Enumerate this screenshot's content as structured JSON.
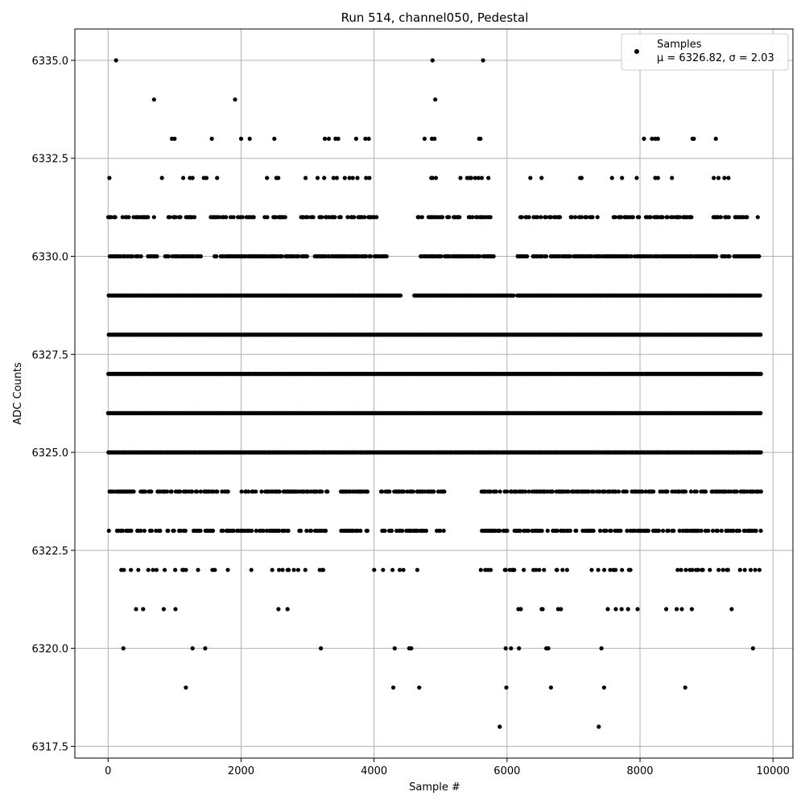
{
  "chart_data": {
    "type": "scatter",
    "title": "Run 514, channel050, Pedestal",
    "xlabel": "Sample #",
    "ylabel": "ADC Counts",
    "xlim": [
      -500,
      10300
    ],
    "ylim": [
      6317.2,
      6335.8
    ],
    "xticks": [
      0,
      2000,
      4000,
      6000,
      8000,
      10000
    ],
    "xtick_labels": [
      "0",
      "2000",
      "4000",
      "6000",
      "8000",
      "10000"
    ],
    "yticks": [
      6317.5,
      6320.0,
      6322.5,
      6325.0,
      6327.5,
      6330.0,
      6332.5,
      6335.0
    ],
    "ytick_labels": [
      "6317.5",
      "6320.0",
      "6322.5",
      "6325.0",
      "6327.5",
      "6330.0",
      "6332.5",
      "6335.0"
    ],
    "grid": true,
    "legend_position": "top-right",
    "marker_color": "#000000",
    "series": [
      {
        "name": "Samples",
        "stats_label": "μ = 6326.82, σ = 2.03",
        "sample_count": 9830,
        "adc_range": [
          6318,
          6335
        ],
        "points": [
          [
            120,
            6335
          ],
          [
            4880,
            6335
          ],
          [
            5640,
            6335
          ],
          [
            690,
            6334
          ],
          [
            1910,
            6334
          ],
          [
            4920,
            6334
          ],
          [
            960,
            6333
          ],
          [
            1000,
            6333
          ],
          [
            1560,
            6333
          ],
          [
            2000,
            6333
          ],
          [
            2130,
            6333
          ],
          [
            2500,
            6333
          ],
          [
            3260,
            6333
          ],
          [
            3320,
            6333
          ],
          [
            3420,
            6333
          ],
          [
            3460,
            6333
          ],
          [
            3730,
            6333
          ],
          [
            3870,
            6333
          ],
          [
            3920,
            6333
          ],
          [
            4760,
            6333
          ],
          [
            4870,
            6333
          ],
          [
            4910,
            6333
          ],
          [
            5580,
            6333
          ],
          [
            5600,
            6333
          ],
          [
            8060,
            6333
          ],
          [
            8180,
            6333
          ],
          [
            8230,
            6333
          ],
          [
            8270,
            6333
          ],
          [
            8790,
            6333
          ],
          [
            8810,
            6333
          ],
          [
            9140,
            6333
          ],
          [
            20,
            6332
          ],
          [
            810,
            6332
          ],
          [
            1130,
            6332
          ],
          [
            1230,
            6332
          ],
          [
            1270,
            6332
          ],
          [
            1440,
            6332
          ],
          [
            1480,
            6332
          ],
          [
            1640,
            6332
          ],
          [
            2390,
            6332
          ],
          [
            2530,
            6332
          ],
          [
            2560,
            6332
          ],
          [
            2970,
            6332
          ],
          [
            3150,
            6332
          ],
          [
            3250,
            6332
          ],
          [
            3390,
            6332
          ],
          [
            3440,
            6332
          ],
          [
            3560,
            6332
          ],
          [
            3630,
            6332
          ],
          [
            3680,
            6332
          ],
          [
            3750,
            6332
          ],
          [
            3880,
            6332
          ],
          [
            3930,
            6332
          ],
          [
            4860,
            6332
          ],
          [
            4880,
            6332
          ],
          [
            4930,
            6332
          ],
          [
            5300,
            6332
          ],
          [
            5400,
            6332
          ],
          [
            5440,
            6332
          ],
          [
            5460,
            6332
          ],
          [
            5520,
            6332
          ],
          [
            5570,
            6332
          ],
          [
            5620,
            6332
          ],
          [
            5720,
            6332
          ],
          [
            6350,
            6332
          ],
          [
            6520,
            6332
          ],
          [
            7100,
            6332
          ],
          [
            7120,
            6332
          ],
          [
            7580,
            6332
          ],
          [
            7730,
            6332
          ],
          [
            7950,
            6332
          ],
          [
            8230,
            6332
          ],
          [
            8270,
            6332
          ],
          [
            8480,
            6332
          ],
          [
            9110,
            6332
          ],
          [
            9180,
            6332
          ],
          [
            9270,
            6332
          ],
          [
            9330,
            6332
          ],
          [
            230,
            6320
          ],
          [
            1270,
            6320
          ],
          [
            1460,
            6320
          ],
          [
            3200,
            6320
          ],
          [
            4310,
            6320
          ],
          [
            4530,
            6320
          ],
          [
            4560,
            6320
          ],
          [
            5980,
            6320
          ],
          [
            6060,
            6320
          ],
          [
            6180,
            6320
          ],
          [
            6590,
            6320
          ],
          [
            6620,
            6320
          ],
          [
            7420,
            6320
          ],
          [
            9700,
            6320
          ],
          [
            1170,
            6319
          ],
          [
            4290,
            6319
          ],
          [
            4680,
            6319
          ],
          [
            5990,
            6319
          ],
          [
            6660,
            6319
          ],
          [
            7460,
            6319
          ],
          [
            8680,
            6319
          ],
          [
            5890,
            6318
          ],
          [
            7380,
            6318
          ]
        ],
        "row_bands": [
          {
            "adc": 6331,
            "ranges": [
              [
                0,
                700
              ],
              [
                900,
                1300
              ],
              [
                1500,
                2200
              ],
              [
                2300,
                2700
              ],
              [
                2900,
                3500
              ],
              [
                3600,
                4100
              ],
              [
                4650,
                5750
              ],
              [
                6200,
                6800
              ],
              [
                6900,
                7400
              ],
              [
                7600,
                8900
              ],
              [
                9100,
                9800
              ]
            ],
            "density": 0.55
          },
          {
            "adc": 6330,
            "ranges": [
              [
                0,
                500
              ],
              [
                600,
                1400
              ],
              [
                1600,
                3000
              ],
              [
                3100,
                4200
              ],
              [
                4700,
                5800
              ],
              [
                6150,
                9800
              ]
            ],
            "density": 0.75
          },
          {
            "adc": 6329,
            "ranges": [
              [
                0,
                4400
              ],
              [
                4600,
                6100
              ],
              [
                6150,
                9810
              ]
            ],
            "density": 1.0
          },
          {
            "adc": 6328,
            "ranges": [
              [
                0,
                9820
              ]
            ],
            "density": 1.0
          },
          {
            "adc": 6327,
            "ranges": [
              [
                0,
                9820
              ]
            ],
            "density": 1.0
          },
          {
            "adc": 6326,
            "ranges": [
              [
                0,
                9820
              ]
            ],
            "density": 1.0
          },
          {
            "adc": 6325,
            "ranges": [
              [
                0,
                9820
              ]
            ],
            "density": 1.0
          },
          {
            "adc": 6324,
            "ranges": [
              [
                0,
                1800
              ],
              [
                2000,
                3300
              ],
              [
                3500,
                3900
              ],
              [
                4100,
                5100
              ],
              [
                5600,
                8200
              ],
              [
                8300,
                9820
              ]
            ],
            "density": 0.6
          },
          {
            "adc": 6323,
            "ranges": [
              [
                0,
                1600
              ],
              [
                1700,
                3300
              ],
              [
                3500,
                3900
              ],
              [
                4100,
                4800
              ],
              [
                4900,
                5100
              ],
              [
                5600,
                9820
              ]
            ],
            "density": 0.5
          },
          {
            "adc": 6322,
            "ranges": [
              [
                0,
                1800
              ],
              [
                2100,
                3300
              ],
              [
                4000,
                4800
              ],
              [
                5600,
                6900
              ],
              [
                7200,
                7900
              ],
              [
                8400,
                9820
              ]
            ],
            "density": 0.18
          },
          {
            "adc": 6321,
            "ranges": [
              [
                400,
                1800
              ],
              [
                2500,
                2900
              ],
              [
                4200,
                4500
              ],
              [
                5900,
                6900
              ],
              [
                7400,
                8900
              ],
              [
                9300,
                9820
              ]
            ],
            "density": 0.1
          }
        ]
      }
    ]
  }
}
